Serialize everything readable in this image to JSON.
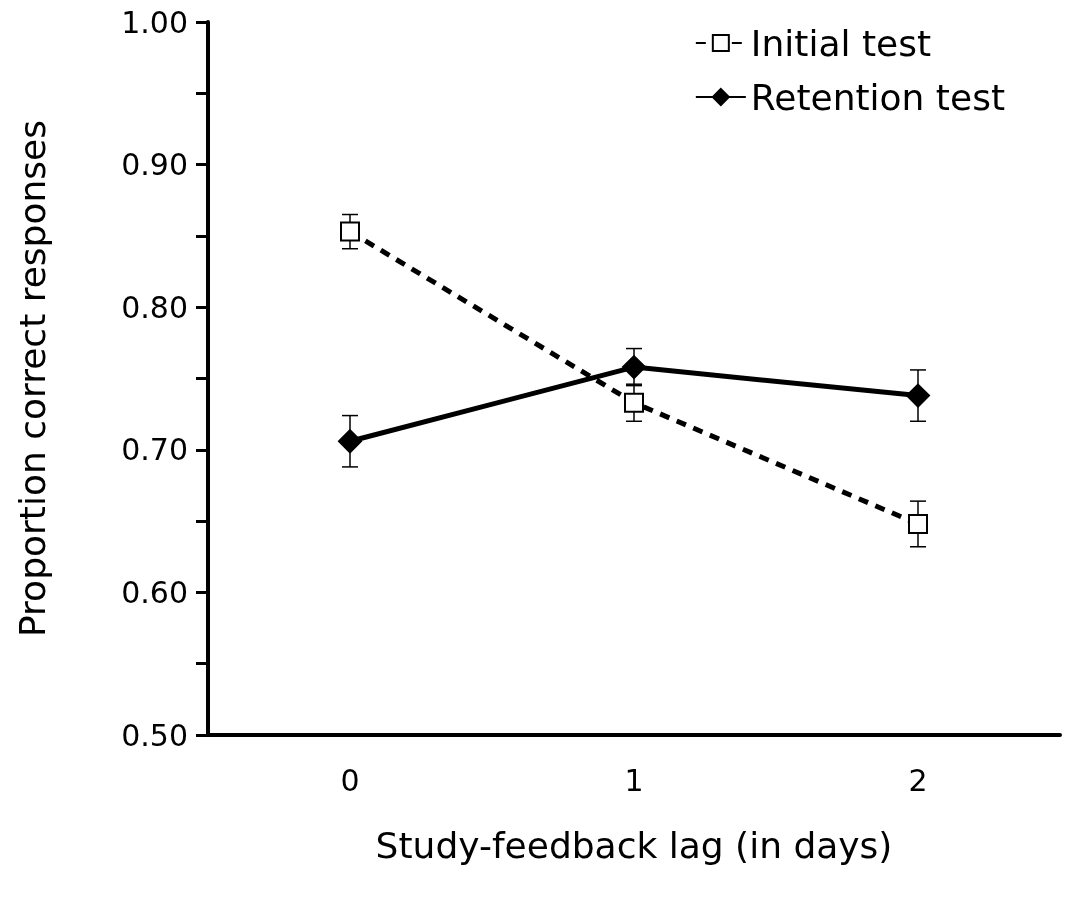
{
  "chart_data": {
    "type": "line",
    "xlabel": "Study-feedback lag (in days)",
    "ylabel": "Proportion correct responses",
    "categories": [
      "0",
      "1",
      "2"
    ],
    "series": [
      {
        "name": "Initial test",
        "color": "#000000",
        "marker": "square",
        "line_style": "dashed",
        "values": [
          0.853,
          0.733,
          0.648
        ],
        "errors": [
          0.012,
          0.013,
          0.016
        ]
      },
      {
        "name": "Retention test",
        "color": "#000000",
        "marker": "diamond",
        "line_style": "solid",
        "values": [
          0.706,
          0.758,
          0.738
        ],
        "errors": [
          0.018,
          0.013,
          0.018
        ]
      }
    ],
    "ylim": [
      0.5,
      1.0
    ],
    "yticks": [
      {
        "value": 0.5,
        "label": "0.50"
      },
      {
        "value": 0.55,
        "label": null
      },
      {
        "value": 0.6,
        "label": "0.60"
      },
      {
        "value": 0.65,
        "label": null
      },
      {
        "value": 0.7,
        "label": "0.70"
      },
      {
        "value": 0.75,
        "label": null
      },
      {
        "value": 0.8,
        "label": "0.80"
      },
      {
        "value": 0.85,
        "label": null
      },
      {
        "value": 0.9,
        "label": "0.90"
      },
      {
        "value": 0.95,
        "label": null
      },
      {
        "value": 1.0,
        "label": "1.00"
      }
    ],
    "grid": false,
    "legend": "top right"
  }
}
